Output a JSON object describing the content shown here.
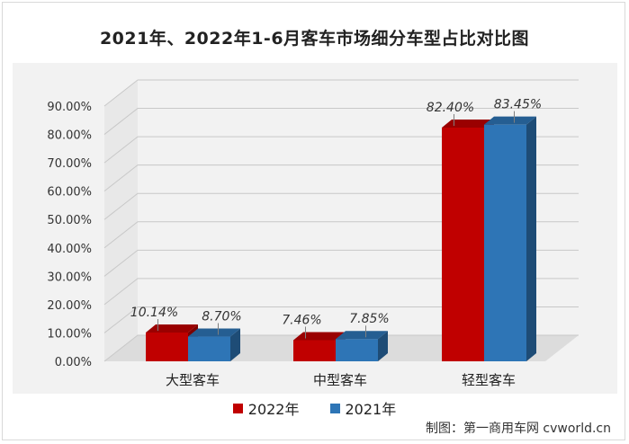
{
  "chart_data": {
    "type": "bar",
    "title": "2021年、2022年1-6月客车市场细分车型占比对比图",
    "categories": [
      "大型客车",
      "中型客车",
      "轻型客车"
    ],
    "series": [
      {
        "name": "2022年",
        "color": "#c00000",
        "values": [
          10.14,
          7.46,
          82.4
        ],
        "labels": [
          "10.14%",
          "7.46%",
          "82.40%"
        ]
      },
      {
        "name": "2021年",
        "color": "#2e75b6",
        "values": [
          8.7,
          7.85,
          83.45
        ],
        "labels": [
          "8.70%",
          "7.85%",
          "83.45%"
        ]
      }
    ],
    "ylim": [
      0,
      90
    ],
    "yticks": [
      "0.00%",
      "10.00%",
      "20.00%",
      "30.00%",
      "40.00%",
      "50.00%",
      "60.00%",
      "70.00%",
      "80.00%",
      "90.00%"
    ],
    "xlabel": "",
    "ylabel": "",
    "grid": true,
    "legend": "bottom"
  },
  "credit": "制图：第一商用车网 cvworld.cn"
}
